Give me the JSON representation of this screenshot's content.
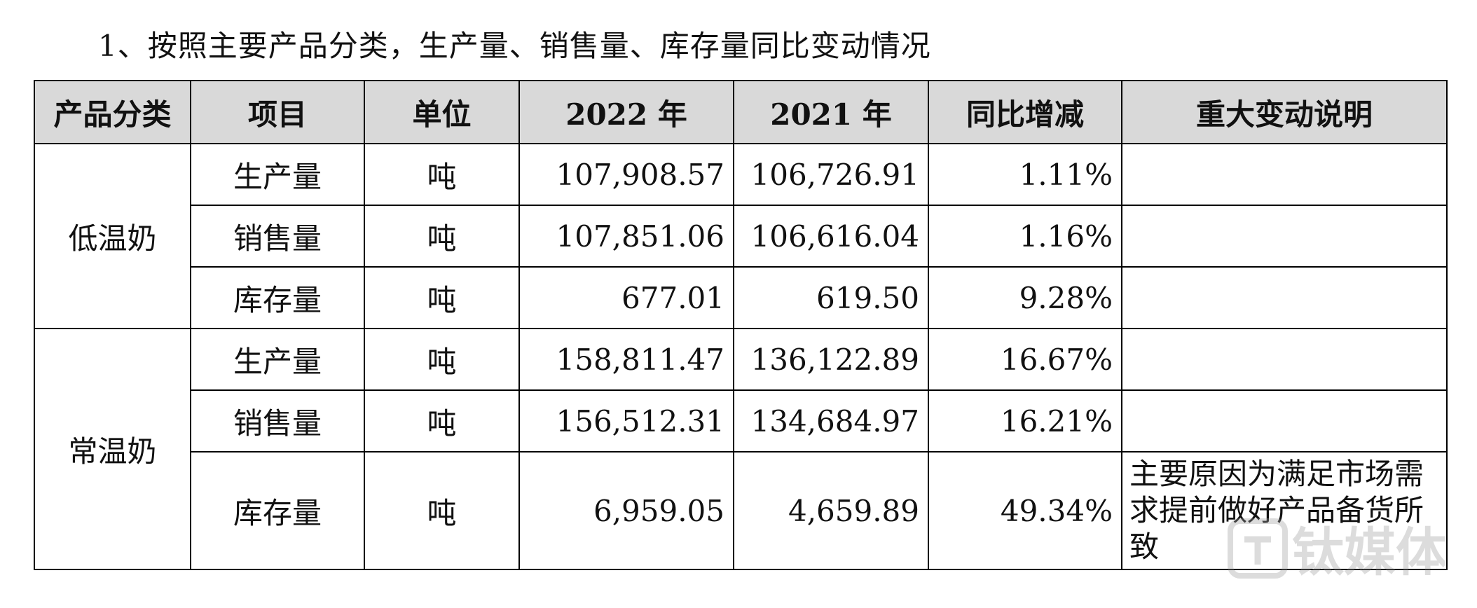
{
  "title": "1、按照主要产品分类，生产量、销售量、库存量同比变动情况",
  "table": {
    "headers": [
      "产品分类",
      "项目",
      "单位",
      "2022 年",
      "2021 年",
      "同比增减",
      "重大变动说明"
    ],
    "groups": [
      {
        "category": "低温奶",
        "rows": [
          {
            "item": "生产量",
            "unit": "吨",
            "y2022": "107,908.57",
            "y2021": "106,726.91",
            "yoy": "1.11%",
            "note": ""
          },
          {
            "item": "销售量",
            "unit": "吨",
            "y2022": "107,851.06",
            "y2021": "106,616.04",
            "yoy": "1.16%",
            "note": ""
          },
          {
            "item": "库存量",
            "unit": "吨",
            "y2022": "677.01",
            "y2021": "619.50",
            "yoy": "9.28%",
            "note": ""
          }
        ]
      },
      {
        "category": "常温奶",
        "rows": [
          {
            "item": "生产量",
            "unit": "吨",
            "y2022": "158,811.47",
            "y2021": "136,122.89",
            "yoy": "16.67%",
            "note": ""
          },
          {
            "item": "销售量",
            "unit": "吨",
            "y2022": "156,512.31",
            "y2021": "134,684.97",
            "yoy": "16.21%",
            "note": ""
          },
          {
            "item": "库存量",
            "unit": "吨",
            "y2022": "6,959.05",
            "y2021": "4,659.89",
            "yoy": "49.34%",
            "note": "主要原因为满足市场需求提前做好产品备货所致"
          }
        ]
      }
    ]
  },
  "watermark": {
    "text": "钛媒体",
    "color": "#9e9e9e"
  }
}
